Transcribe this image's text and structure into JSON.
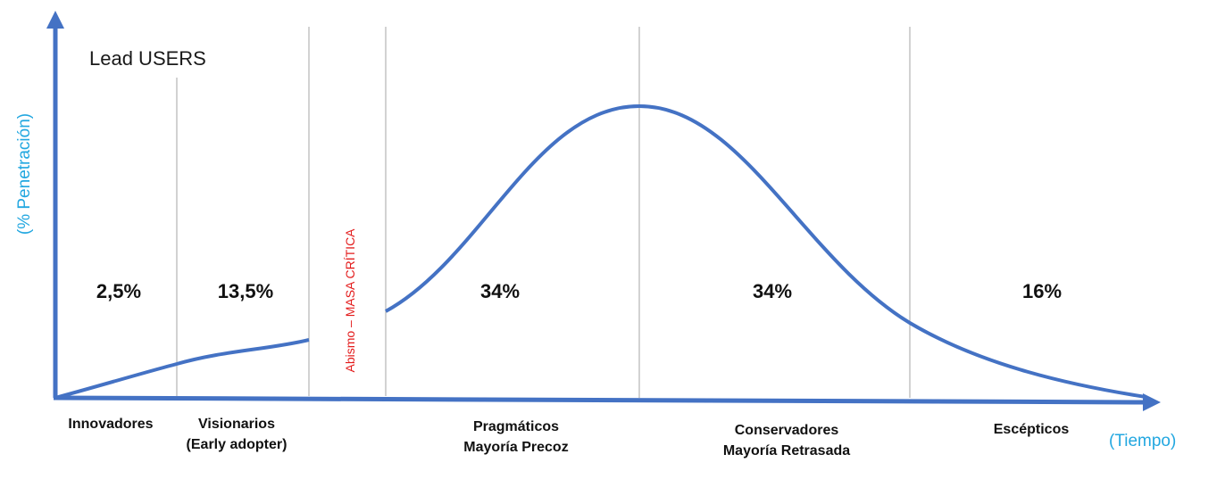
{
  "diagram": {
    "top_label": "Lead USERS",
    "y_axis_label": "(% Penetración)",
    "x_axis_label": "(Tiempo)",
    "chasm_label": "Abismo – MASA CRÍTICA",
    "percentages": [
      "2,5%",
      "13,5%",
      "34%",
      "34%",
      "16%"
    ],
    "categories": [
      {
        "lines": [
          "Innovadores"
        ]
      },
      {
        "lines": [
          "Visionarios",
          "(Early adopter)"
        ]
      },
      {
        "lines": [
          "Pragmáticos",
          "Mayoría Precoz"
        ]
      },
      {
        "lines": [
          "Conservadores",
          "Mayoría Retrasada"
        ]
      },
      {
        "lines": [
          "Escépticos"
        ]
      }
    ]
  },
  "colors": {
    "curve": "#4472c4",
    "axis": "#4472c4",
    "divider": "#a6a6a6",
    "axis_label": "#22a7e0",
    "chasm": "#e31b1b"
  }
}
